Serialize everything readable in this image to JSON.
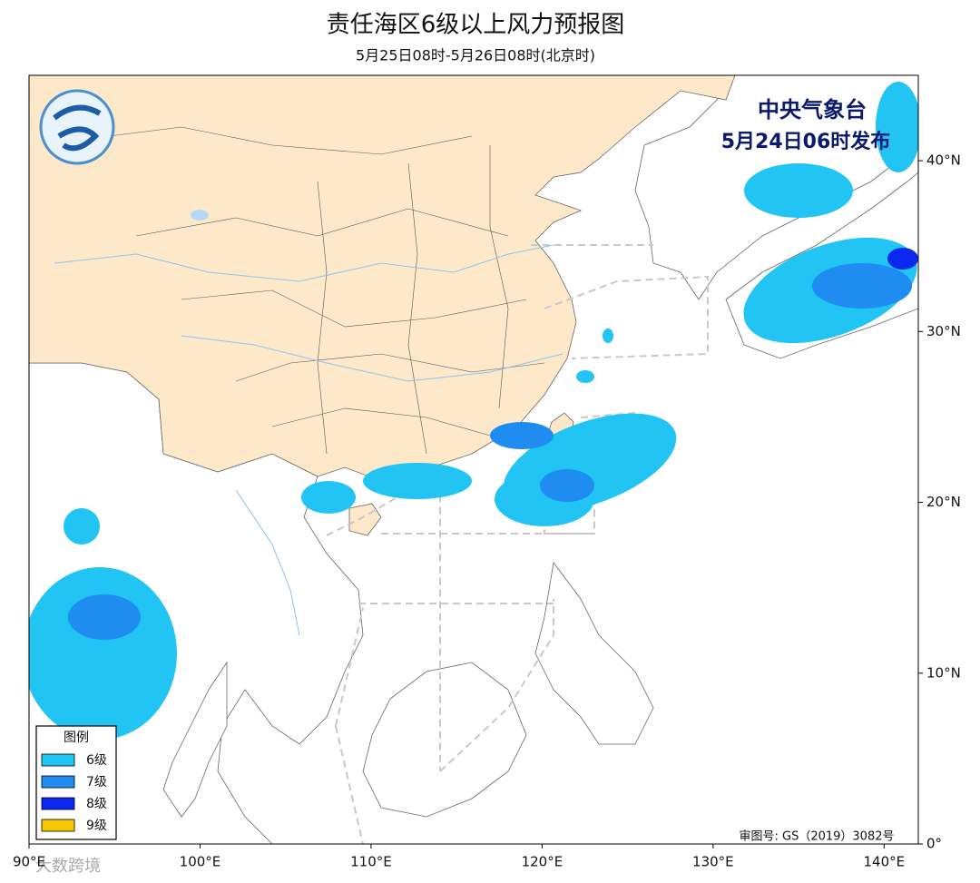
{
  "header": {
    "title": "责任海区6级以上风力预报图",
    "subtitle": "5月25日08时-5月26日08时(北京时)"
  },
  "map": {
    "issuer": "中央气象台",
    "issued": "5月24日06时发布",
    "approval": "审图号: GS（2019）3082号",
    "watermark": "大数跨境",
    "lonlim": [
      90,
      142
    ],
    "latlim": [
      0,
      45
    ],
    "lon_ticks": [
      {
        "value": 90,
        "label": "90°E"
      },
      {
        "value": 100,
        "label": "100°E"
      },
      {
        "value": 110,
        "label": "110°E"
      },
      {
        "value": 120,
        "label": "120°E"
      },
      {
        "value": 130,
        "label": "130°E"
      },
      {
        "value": 140,
        "label": "140°E"
      }
    ],
    "lat_ticks": [
      {
        "value": 0,
        "label": "0°"
      },
      {
        "value": 10,
        "label": "10°N"
      },
      {
        "value": 20,
        "label": "20°N"
      },
      {
        "value": 30,
        "label": "30°N"
      },
      {
        "value": 40,
        "label": "40°N"
      }
    ],
    "legend": {
      "title": "图例",
      "items": [
        {
          "label": "6级",
          "color": "#21c4f3"
        },
        {
          "label": "7级",
          "color": "#1e8cf0"
        },
        {
          "label": "8级",
          "color": "#0a28f0"
        },
        {
          "label": "9级",
          "color": "#f5c800"
        }
      ]
    }
  }
}
